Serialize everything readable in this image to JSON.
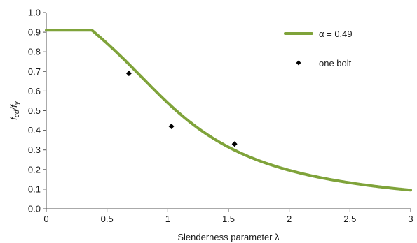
{
  "chart_data": {
    "type": "line",
    "title": "",
    "xlabel": "Slenderness parameter λ",
    "ylabel_main": "f",
    "ylabel_sub1": "cd",
    "ylabel_slash": "/f",
    "ylabel_sub2": "y",
    "xlim": [
      0,
      3
    ],
    "ylim": [
      0,
      1.0
    ],
    "xticks": [
      0,
      0.5,
      1,
      1.5,
      2,
      2.5,
      3
    ],
    "xtick_labels": [
      "0",
      "0.5",
      "1",
      "1.5",
      "2",
      "2.5",
      "3"
    ],
    "yticks": [
      0,
      0.1,
      0.2,
      0.3,
      0.4,
      0.5,
      0.6,
      0.7,
      0.8,
      0.9,
      1.0
    ],
    "ytick_labels": [
      "0.0",
      "0.1",
      "0.2",
      "0.3",
      "0.4",
      "0.5",
      "0.6",
      "0.7",
      "0.8",
      "0.9",
      "1.0"
    ],
    "grid": false,
    "legend_position": "top-right",
    "series": [
      {
        "name": "α = 0.49",
        "kind": "line",
        "color": "#7fa33a",
        "curve": {
          "form": "buckling",
          "alpha": 0.49,
          "lambda0": 0.2,
          "plateau": 0.91
        }
      },
      {
        "name": "one bolt",
        "kind": "scatter",
        "marker": "diamond",
        "color": "#000000",
        "points": [
          {
            "x": 0.68,
            "y": 0.69
          },
          {
            "x": 1.03,
            "y": 0.42
          },
          {
            "x": 1.55,
            "y": 0.33
          }
        ]
      }
    ]
  }
}
